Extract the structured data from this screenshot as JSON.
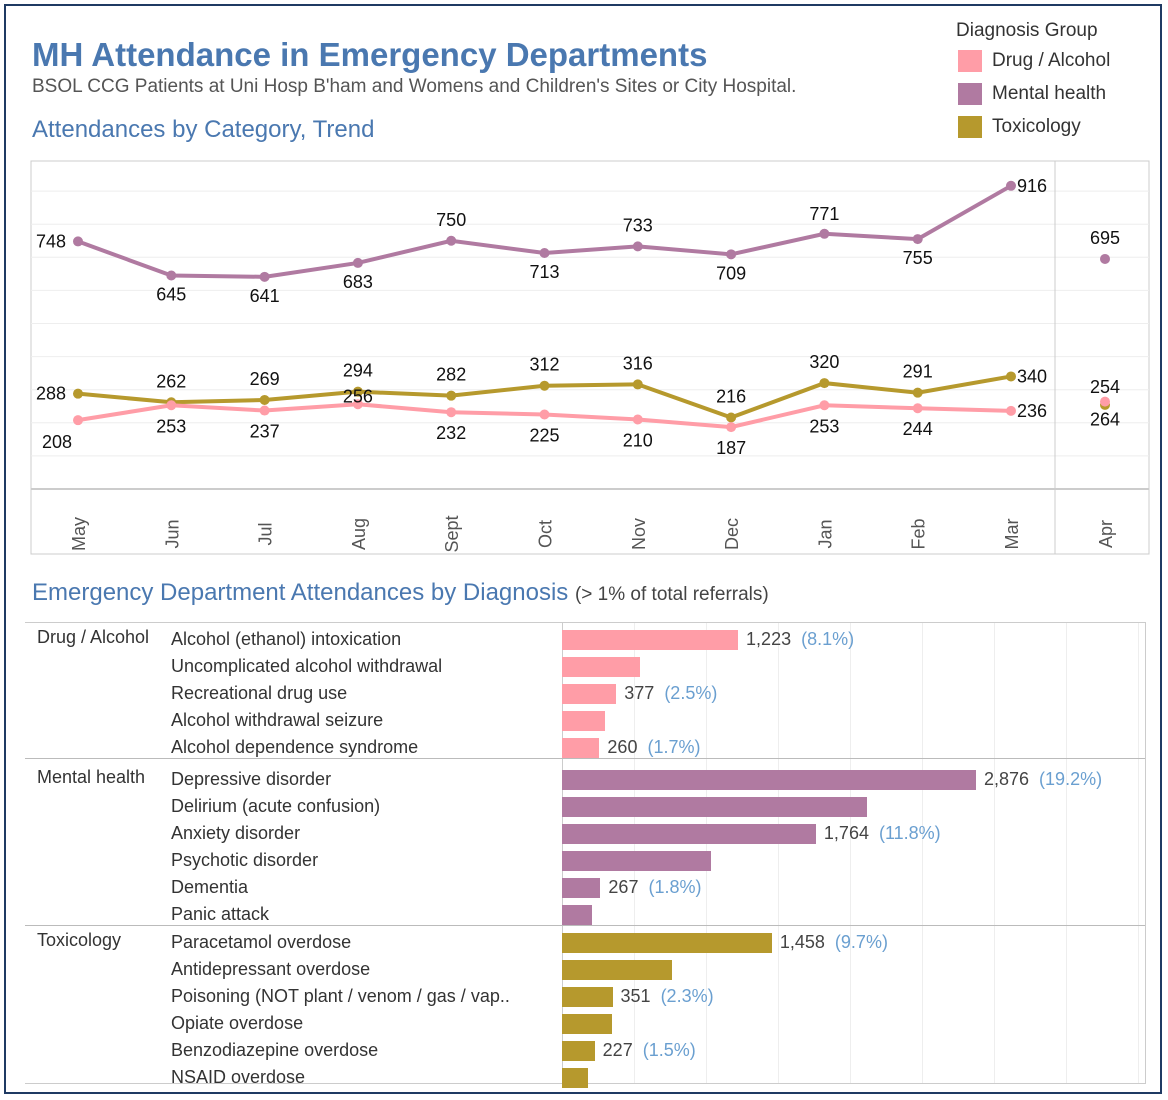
{
  "header": {
    "title": "MH Attendance in Emergency Departments",
    "subtitle": "BSOL CCG Patients at Uni Hosp B'ham and Womens and Children's Sites or City Hospital."
  },
  "legend": {
    "title": "Diagnosis Group",
    "items": [
      {
        "label": "Drug / Alcohol",
        "color": "#ff9da7"
      },
      {
        "label": "Mental health",
        "color": "#b07aa1"
      },
      {
        "label": "Toxicology",
        "color": "#b6992d"
      }
    ]
  },
  "chart_data": [
    {
      "type": "line",
      "title": "Attendances by Category, Trend",
      "categories": [
        "May",
        "Jun",
        "Jul",
        "Aug",
        "Sept",
        "Oct",
        "Nov",
        "Dec",
        "Jan",
        "Feb",
        "Mar",
        "Apr"
      ],
      "ylim": [
        0,
        1000
      ],
      "grid": true,
      "series": [
        {
          "name": "Mental health",
          "color": "#b07aa1",
          "values": [
            748,
            645,
            641,
            683,
            750,
            713,
            733,
            709,
            771,
            755,
            916,
            695
          ]
        },
        {
          "name": "Toxicology",
          "color": "#b6992d",
          "values": [
            288,
            262,
            269,
            294,
            282,
            312,
            316,
            216,
            320,
            291,
            340,
            254
          ]
        },
        {
          "name": "Drug / Alcohol",
          "color": "#ff9da7",
          "values": [
            208,
            253,
            237,
            256,
            232,
            225,
            210,
            187,
            253,
            244,
            236,
            264
          ]
        }
      ]
    },
    {
      "type": "bar",
      "title": "Emergency Department Attendances by Diagnosis",
      "subtitle": "(> 1% of total referrals)",
      "xlim": [
        0,
        4000
      ],
      "groups": [
        {
          "name": "Drug / Alcohol",
          "color": "#ff9da7",
          "rows": [
            {
              "label": "Alcohol (ethanol) intoxication",
              "value": 1223,
              "value_label": "1,223",
              "pct": "(8.1%)"
            },
            {
              "label": "Uncomplicated alcohol withdrawal",
              "value": 540
            },
            {
              "label": "Recreational drug use",
              "value": 377,
              "value_label": "377",
              "pct": "(2.5%)"
            },
            {
              "label": "Alcohol withdrawal seizure",
              "value": 300
            },
            {
              "label": "Alcohol dependence syndrome",
              "value": 260,
              "value_label": "260",
              "pct": "(1.7%)"
            }
          ]
        },
        {
          "name": "Mental health",
          "color": "#b07aa1",
          "rows": [
            {
              "label": "Depressive disorder",
              "value": 2876,
              "value_label": "2,876",
              "pct": "(19.2%)"
            },
            {
              "label": "Delirium (acute confusion)",
              "value": 2120
            },
            {
              "label": "Anxiety disorder",
              "value": 1764,
              "value_label": "1,764",
              "pct": "(11.8%)"
            },
            {
              "label": "Psychotic disorder",
              "value": 1035
            },
            {
              "label": "Dementia",
              "value": 267,
              "value_label": "267",
              "pct": "(1.8%)"
            },
            {
              "label": "Panic attack",
              "value": 210
            }
          ]
        },
        {
          "name": "Toxicology",
          "color": "#b6992d",
          "rows": [
            {
              "label": "Paracetamol overdose",
              "value": 1458,
              "value_label": "1,458",
              "pct": "(9.7%)"
            },
            {
              "label": "Antidepressant overdose",
              "value": 765
            },
            {
              "label": "Poisoning (NOT plant / venom / gas / vap..",
              "value": 351,
              "value_label": "351",
              "pct": "(2.3%)"
            },
            {
              "label": "Opiate overdose",
              "value": 350
            },
            {
              "label": "Benzodiazepine overdose",
              "value": 227,
              "value_label": "227",
              "pct": "(1.5%)"
            },
            {
              "label": "NSAID overdose",
              "value": 180
            }
          ]
        }
      ]
    }
  ]
}
